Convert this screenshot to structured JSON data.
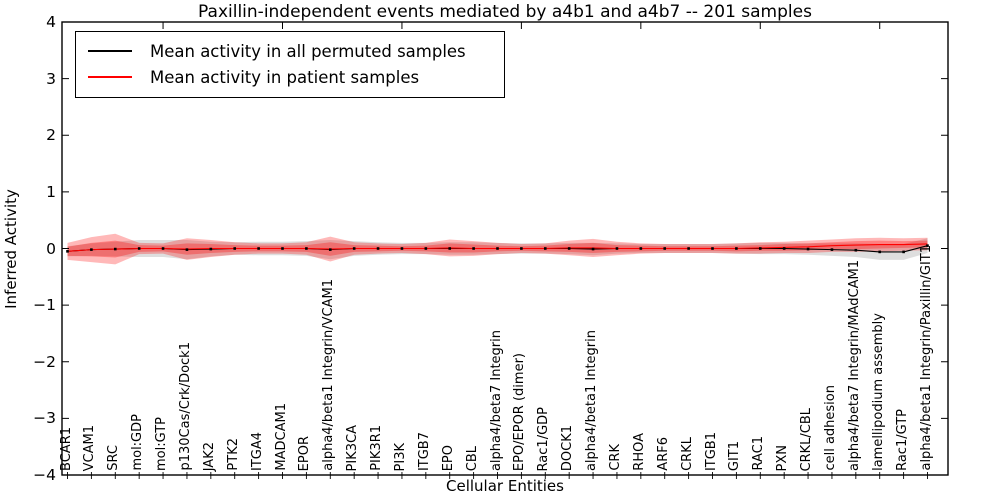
{
  "figure": {
    "title": "Paxillin-independent events mediated by a4b1 and a4b7 -- 201 samples"
  },
  "legend": {
    "position": "upper left",
    "entries": [
      {
        "label": "Mean activity in all permuted samples",
        "color": "#000000"
      },
      {
        "label": "Mean activity in patient samples",
        "color": "#ff0000"
      }
    ]
  },
  "chart_data": {
    "type": "line",
    "title": "Paxillin-independent events mediated by a4b1 and a4b7 -- 201 samples",
    "xlabel": "Cellular Entities",
    "ylabel": "Inferred Activity",
    "ylim": [
      -4,
      4
    ],
    "grid": false,
    "yticks": [
      {
        "v": 4,
        "label": "4"
      },
      {
        "v": 3,
        "label": "3"
      },
      {
        "v": 2,
        "label": "2"
      },
      {
        "v": 1,
        "label": "1"
      },
      {
        "v": 0,
        "label": "0"
      },
      {
        "v": -1,
        "label": "−1"
      },
      {
        "v": -2,
        "label": "−2"
      },
      {
        "v": -3,
        "label": "−3"
      },
      {
        "v": -4,
        "label": "−4"
      }
    ],
    "top_tick_indices": [
      4,
      9,
      14,
      19,
      24,
      29,
      34
    ],
    "categories": [
      "BCAR1",
      "VCAM1",
      "SRC",
      "mol:GDP",
      "mol:GTP",
      "p130Cas/Crk/Dock1",
      "JAK2",
      "PTK2",
      "ITGA4",
      "MADCAM1",
      "EPOR",
      "alpha4/beta1 Integrin/VCAM1",
      "PIK3CA",
      "PIK3R1",
      "PI3K",
      "ITGB7",
      "EPO",
      "CBL",
      "alpha4/beta7 Integrin",
      "EPO/EPOR (dimer)",
      "Rac1/GDP",
      "DOCK1",
      "alpha4/beta1 Integrin",
      "CRK",
      "RHOA",
      "ARF6",
      "CRKL",
      "ITGB1",
      "GIT1",
      "RAC1",
      "PXN",
      "CRKL/CBL",
      "cell adhesion",
      "alpha4/beta7 Integrin/MAdCAM1",
      "lamellipodium assembly",
      "Rac1/GTP",
      "alpha4/beta1 Integrin/Paxillin/GIT1"
    ],
    "series": [
      {
        "name": "Mean activity in all permuted samples",
        "color": "#000000",
        "band_color": "rgba(0,0,0,0.13)",
        "values": [
          -0.05,
          -0.02,
          -0.01,
          0,
          0,
          -0.02,
          -0.01,
          0,
          0,
          0,
          0,
          -0.02,
          0,
          0,
          0,
          0,
          0,
          0,
          0,
          0,
          0,
          0,
          -0.01,
          0,
          0,
          0,
          0,
          0,
          0,
          0,
          0,
          -0.01,
          -0.02,
          -0.03,
          -0.06,
          -0.06,
          0.05
        ],
        "band_half": [
          0.09,
          0.11,
          0.13,
          0.15,
          0.15,
          0.17,
          0.13,
          0.11,
          0.12,
          0.12,
          0.13,
          0.17,
          0.13,
          0.11,
          0.1,
          0.1,
          0.11,
          0.11,
          0.1,
          0.09,
          0.09,
          0.1,
          0.11,
          0.09,
          0.08,
          0.08,
          0.08,
          0.08,
          0.09,
          0.1,
          0.1,
          0.1,
          0.11,
          0.12,
          0.14,
          0.14,
          0.13
        ]
      },
      {
        "name": "Mean activity in patient samples",
        "color": "#ff0000",
        "band_color_outer": "rgba(255,0,0,0.28)",
        "band_color_inner": "rgba(255,0,0,0.30)",
        "values": [
          -0.05,
          -0.02,
          -0.01,
          0,
          0,
          -0.01,
          0,
          0,
          0,
          0,
          0,
          -0.01,
          0,
          0,
          0,
          0,
          0.01,
          0,
          0,
          0,
          0,
          0.01,
          0.01,
          0,
          0,
          0,
          0,
          0,
          0,
          0.01,
          0.02,
          0.03,
          0.05,
          0.06,
          0.07,
          0.07,
          0.08
        ],
        "band_half_outer": [
          0.15,
          0.22,
          0.27,
          0.1,
          0.09,
          0.19,
          0.15,
          0.11,
          0.09,
          0.09,
          0.11,
          0.22,
          0.11,
          0.09,
          0.08,
          0.1,
          0.15,
          0.13,
          0.1,
          0.08,
          0.09,
          0.13,
          0.16,
          0.12,
          0.09,
          0.08,
          0.08,
          0.08,
          0.09,
          0.1,
          0.1,
          0.11,
          0.11,
          0.12,
          0.12,
          0.11,
          0.11
        ],
        "band_half_inner": [
          0.08,
          0.12,
          0.15,
          0.06,
          0.05,
          0.1,
          0.08,
          0.06,
          0.05,
          0.05,
          0.06,
          0.12,
          0.06,
          0.05,
          0.04,
          0.05,
          0.08,
          0.07,
          0.05,
          0.04,
          0.05,
          0.07,
          0.09,
          0.06,
          0.05,
          0.04,
          0.04,
          0.04,
          0.05,
          0.05,
          0.06,
          0.06,
          0.06,
          0.07,
          0.07,
          0.06,
          0.06
        ]
      }
    ]
  }
}
